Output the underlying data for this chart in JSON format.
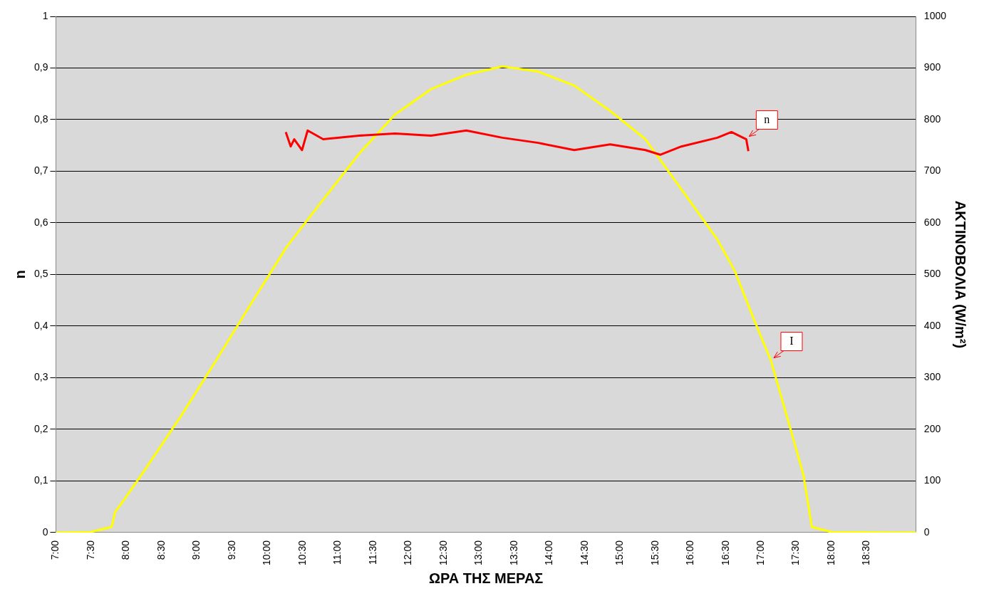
{
  "chart_data": {
    "type": "line",
    "xlabel": "ΩΡΑ ΤΗΣ ΜΕΡΑΣ",
    "ylabel": "n",
    "y2label": "ΑΚΤΙΝΟΒΟΛΙΑ (W/m²)",
    "xlim": [
      7,
      19.2
    ],
    "xticks": [
      {
        "value": 7,
        "label": "7:00"
      },
      {
        "value": 7.5,
        "label": "7:30"
      },
      {
        "value": 8,
        "label": "8:00"
      },
      {
        "value": 8.5,
        "label": "8:30"
      },
      {
        "value": 9,
        "label": "9:00"
      },
      {
        "value": 9.5,
        "label": "9:30"
      },
      {
        "value": 10,
        "label": "10:00"
      },
      {
        "value": 10.5,
        "label": "10:30"
      },
      {
        "value": 11,
        "label": "11:00"
      },
      {
        "value": 11.5,
        "label": "11:30"
      },
      {
        "value": 12,
        "label": "12:00"
      },
      {
        "value": 12.5,
        "label": "12:30"
      },
      {
        "value": 13,
        "label": "13:00"
      },
      {
        "value": 13.5,
        "label": "13:30"
      },
      {
        "value": 14,
        "label": "14:00"
      },
      {
        "value": 14.5,
        "label": "14:30"
      },
      {
        "value": 15,
        "label": "15:00"
      },
      {
        "value": 15.5,
        "label": "15:30"
      },
      {
        "value": 16,
        "label": "16:00"
      },
      {
        "value": 16.5,
        "label": "16:30"
      },
      {
        "value": 17,
        "label": "17:00"
      },
      {
        "value": 17.5,
        "label": "17:30"
      },
      {
        "value": 18,
        "label": "18:00"
      },
      {
        "value": 18.5,
        "label": "18:30"
      }
    ],
    "ylim": [
      0,
      1
    ],
    "yticks": [
      0,
      {
        "value": 0.1,
        "label": "0,1"
      },
      {
        "value": 0.2,
        "label": "0,2"
      },
      {
        "value": 0.3,
        "label": "0,3"
      },
      {
        "value": 0.4,
        "label": "0,4"
      },
      {
        "value": 0.5,
        "label": "0,5"
      },
      {
        "value": 0.6,
        "label": "0,6"
      },
      {
        "value": 0.7,
        "label": "0,7"
      },
      {
        "value": 0.8,
        "label": "0,8"
      },
      {
        "value": 0.9,
        "label": "0,9"
      },
      1
    ],
    "y2lim": [
      0,
      1000
    ],
    "y2ticks": [
      0,
      100,
      200,
      300,
      400,
      500,
      600,
      700,
      800,
      900,
      1000
    ],
    "grid": "y",
    "legend": false,
    "marker": "none",
    "line_style": "solid",
    "series": [
      {
        "name": "n",
        "color": "#ff0000",
        "x": [
          10.26,
          10.33,
          10.38,
          10.49,
          10.57,
          10.79,
          11.3,
          11.81,
          12.32,
          12.82,
          13.33,
          13.84,
          14.35,
          14.86,
          15.36,
          15.57,
          15.87,
          16.38,
          16.58,
          16.79,
          16.82
        ],
        "values": [
          0.776,
          0.748,
          0.762,
          0.741,
          0.779,
          0.762,
          0.769,
          0.773,
          0.769,
          0.779,
          0.765,
          0.755,
          0.741,
          0.752,
          0.741,
          0.732,
          0.748,
          0.765,
          0.776,
          0.762,
          0.739
        ]
      },
      {
        "name": "I",
        "color": "#ffff00",
        "axis": "y2",
        "x": [
          7,
          7.49,
          7.79,
          7.84,
          8,
          8.25,
          8.76,
          9.27,
          9.77,
          10.28,
          10.79,
          11.3,
          11.81,
          12.32,
          12.82,
          13.33,
          13.84,
          14.35,
          14.86,
          15.36,
          15.87,
          16.38,
          16.63,
          16.89,
          17.14,
          17.4,
          17.6,
          17.72,
          18,
          19.2
        ],
        "values": [
          0,
          1,
          11,
          40,
          70,
          119,
          223,
          333,
          444,
          555,
          645,
          734,
          810,
          859,
          887,
          903,
          893,
          866,
          817,
          762,
          665,
          568,
          506,
          416,
          333,
          209,
          112,
          11,
          1,
          0
        ]
      }
    ]
  }
}
